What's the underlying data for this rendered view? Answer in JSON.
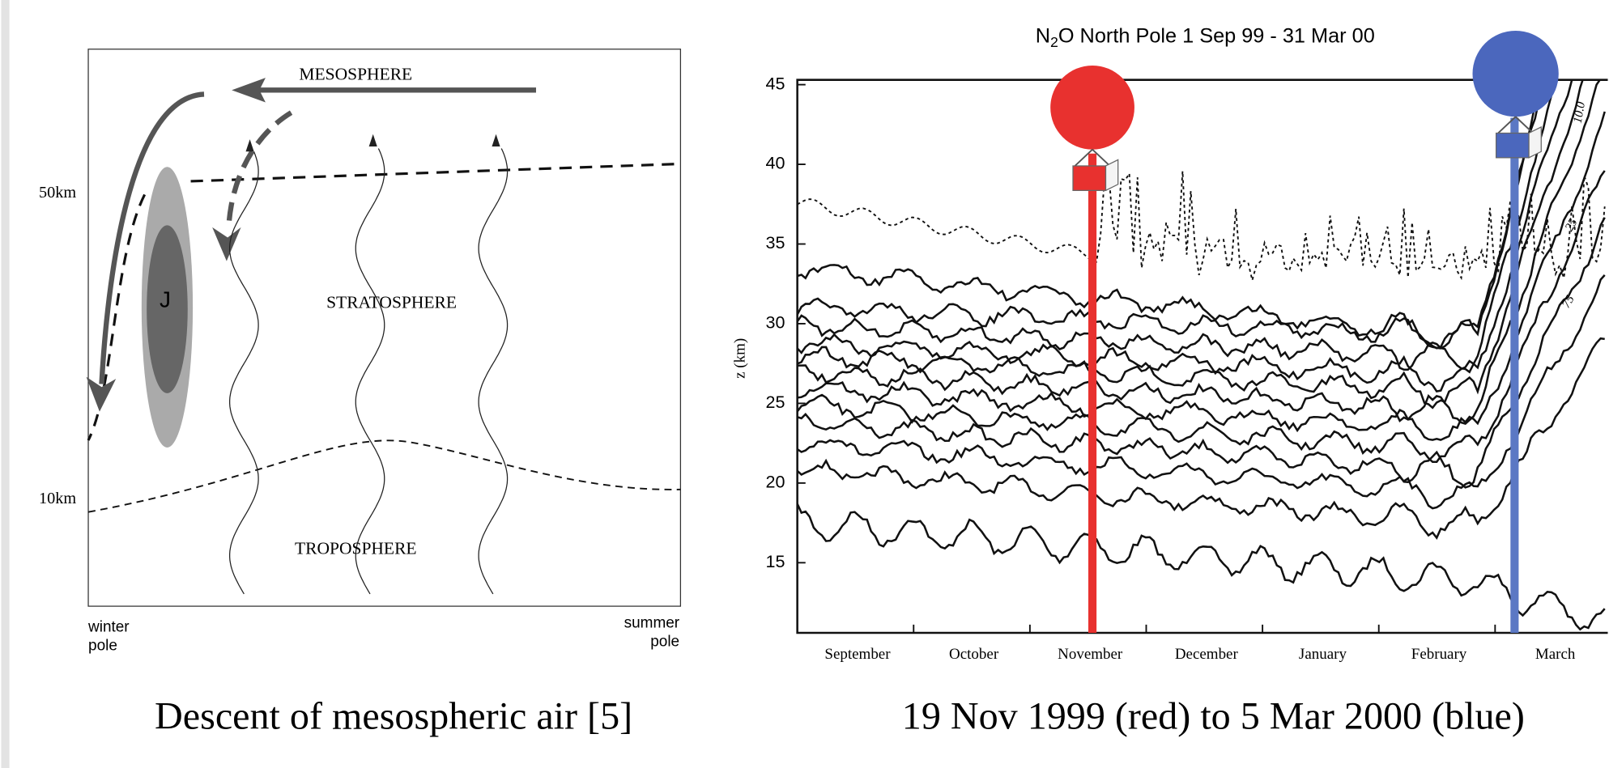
{
  "left_figure": {
    "labels": {
      "mesosphere": "MESOSPHERE",
      "stratosphere": "STRATOSPHERE",
      "troposphere": "TROPOSPHERE",
      "jet": "J",
      "km50": "50km",
      "km10": "10km",
      "winter_pole": [
        "winter",
        "pole"
      ],
      "summer_pole": [
        "summer",
        "pole"
      ]
    },
    "caption": "Descent of mesospheric air [5]"
  },
  "right_figure": {
    "title": [
      "N",
      "2",
      "O North Pole 1 Sep 99 - 31 Mar 00"
    ],
    "y_label": "z (km)",
    "ylim": [
      10.6,
      45.3
    ],
    "yticks": [
      15,
      20,
      25,
      30,
      35,
      40,
      45
    ],
    "months": [
      "September",
      "October",
      "November",
      "December",
      "January",
      "February",
      "March"
    ],
    "contour_labels": [
      "10.0",
      "25",
      "75"
    ],
    "caption": "19 Nov 1999 (red) to 5 Mar 2000 (blue)"
  }
}
